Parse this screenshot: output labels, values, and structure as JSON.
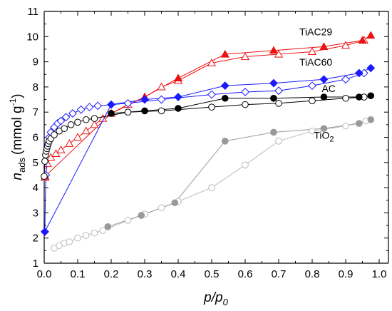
{
  "chart_data": {
    "type": "scatter",
    "title": "",
    "xlabel": {
      "main": "p/p",
      "sub": "0"
    },
    "ylabel": {
      "main": "n",
      "sub": "ads",
      "unit": "(mmol g",
      "sup": "-1",
      "close": ")"
    },
    "xlim": [
      0.0,
      1.0
    ],
    "ylim": [
      1,
      11
    ],
    "xticks": [
      "0.0",
      "0.1",
      "0.2",
      "0.3",
      "0.4",
      "0.5",
      "0.6",
      "0.7",
      "0.8",
      "0.9",
      "1.0"
    ],
    "yticks": [
      "1",
      "2",
      "3",
      "4",
      "5",
      "6",
      "7",
      "8",
      "9",
      "10",
      "11"
    ],
    "grid": false,
    "series": [
      {
        "name": "TiAC29",
        "label": {
          "main": "TiAC29",
          "sub": ""
        },
        "color": "#ee1111",
        "marker": "triangle",
        "filled_points": [
          [
            0.003,
            4.45
          ],
          [
            0.2,
            6.95
          ],
          [
            0.3,
            7.6
          ],
          [
            0.4,
            8.35
          ],
          [
            0.54,
            9.3
          ],
          [
            0.685,
            9.45
          ],
          [
            0.835,
            9.6
          ],
          [
            0.95,
            9.85
          ],
          [
            0.975,
            10.05
          ]
        ],
        "open_points": [
          [
            0.002,
            4.4
          ],
          [
            0.01,
            4.95
          ],
          [
            0.02,
            5.2
          ],
          [
            0.035,
            5.35
          ],
          [
            0.05,
            5.5
          ],
          [
            0.075,
            5.75
          ],
          [
            0.1,
            6.0
          ],
          [
            0.125,
            6.25
          ],
          [
            0.15,
            6.5
          ],
          [
            0.175,
            6.75
          ],
          [
            0.2,
            6.95
          ],
          [
            0.25,
            7.3
          ],
          [
            0.3,
            7.6
          ],
          [
            0.35,
            8.0
          ],
          [
            0.4,
            8.25
          ],
          [
            0.5,
            8.95
          ],
          [
            0.6,
            9.2
          ],
          [
            0.7,
            9.3
          ],
          [
            0.8,
            9.4
          ],
          [
            0.9,
            9.65
          ],
          [
            0.955,
            9.85
          ]
        ]
      },
      {
        "name": "TiAC60",
        "label": {
          "main": "TiAC60",
          "sub": ""
        },
        "color": "#1a1aff",
        "marker": "diamond",
        "filled_points": [
          [
            0.002,
            2.25
          ],
          [
            0.2,
            7.3
          ],
          [
            0.3,
            7.5
          ],
          [
            0.4,
            7.6
          ],
          [
            0.54,
            8.05
          ],
          [
            0.685,
            8.15
          ],
          [
            0.835,
            8.3
          ],
          [
            0.94,
            8.55
          ],
          [
            0.975,
            8.75
          ]
        ],
        "open_points": [
          [
            0.002,
            2.25
          ],
          [
            0.005,
            4.5
          ],
          [
            0.01,
            5.7
          ],
          [
            0.015,
            6.0
          ],
          [
            0.02,
            6.2
          ],
          [
            0.03,
            6.4
          ],
          [
            0.04,
            6.55
          ],
          [
            0.05,
            6.65
          ],
          [
            0.065,
            6.8
          ],
          [
            0.085,
            6.95
          ],
          [
            0.11,
            7.1
          ],
          [
            0.135,
            7.2
          ],
          [
            0.16,
            7.25
          ],
          [
            0.25,
            7.35
          ],
          [
            0.35,
            7.5
          ],
          [
            0.5,
            7.7
          ],
          [
            0.6,
            7.8
          ],
          [
            0.7,
            7.85
          ],
          [
            0.8,
            8.05
          ],
          [
            0.9,
            8.3
          ],
          [
            0.955,
            8.55
          ]
        ]
      },
      {
        "name": "AC",
        "label": {
          "main": "AC",
          "sub": ""
        },
        "color": "#000000",
        "marker": "circle",
        "filled_points": [
          [
            0.2,
            6.95
          ],
          [
            0.3,
            7.05
          ],
          [
            0.4,
            7.15
          ],
          [
            0.54,
            7.55
          ],
          [
            0.685,
            7.55
          ],
          [
            0.835,
            7.6
          ],
          [
            0.94,
            7.6
          ],
          [
            0.975,
            7.65
          ]
        ],
        "open_points": [
          [
            0.0,
            4.45
          ],
          [
            0.002,
            5.05
          ],
          [
            0.004,
            5.3
          ],
          [
            0.006,
            5.45
          ],
          [
            0.008,
            5.55
          ],
          [
            0.01,
            5.65
          ],
          [
            0.012,
            5.75
          ],
          [
            0.015,
            5.85
          ],
          [
            0.02,
            5.95
          ],
          [
            0.03,
            6.1
          ],
          [
            0.045,
            6.25
          ],
          [
            0.06,
            6.35
          ],
          [
            0.08,
            6.5
          ],
          [
            0.1,
            6.6
          ],
          [
            0.125,
            6.7
          ],
          [
            0.15,
            6.75
          ],
          [
            0.25,
            7.0
          ],
          [
            0.35,
            7.05
          ],
          [
            0.5,
            7.2
          ],
          [
            0.6,
            7.3
          ],
          [
            0.7,
            7.35
          ],
          [
            0.8,
            7.45
          ],
          [
            0.9,
            7.55
          ],
          [
            0.955,
            7.6
          ]
        ]
      },
      {
        "name": "TiO2",
        "label": {
          "main": "TiO",
          "sub": "2"
        },
        "color": "#999999",
        "open_color": "#bbbbbb",
        "marker": "circle",
        "filled_points": [
          [
            0.19,
            2.45
          ],
          [
            0.29,
            2.9
          ],
          [
            0.39,
            3.4
          ],
          [
            0.54,
            5.85
          ],
          [
            0.685,
            6.2
          ],
          [
            0.835,
            6.35
          ],
          [
            0.94,
            6.55
          ],
          [
            0.975,
            6.7
          ]
        ],
        "open_points": [
          [
            0.03,
            1.6
          ],
          [
            0.045,
            1.7
          ],
          [
            0.06,
            1.8
          ],
          [
            0.075,
            1.85
          ],
          [
            0.1,
            2.0
          ],
          [
            0.125,
            2.1
          ],
          [
            0.15,
            2.2
          ],
          [
            0.175,
            2.3
          ],
          [
            0.25,
            2.7
          ],
          [
            0.3,
            2.95
          ],
          [
            0.35,
            3.2
          ],
          [
            0.4,
            3.45
          ],
          [
            0.5,
            4.0
          ],
          [
            0.6,
            4.9
          ],
          [
            0.7,
            5.85
          ],
          [
            0.8,
            6.25
          ],
          [
            0.9,
            6.45
          ],
          [
            0.96,
            6.65
          ]
        ]
      }
    ]
  }
}
